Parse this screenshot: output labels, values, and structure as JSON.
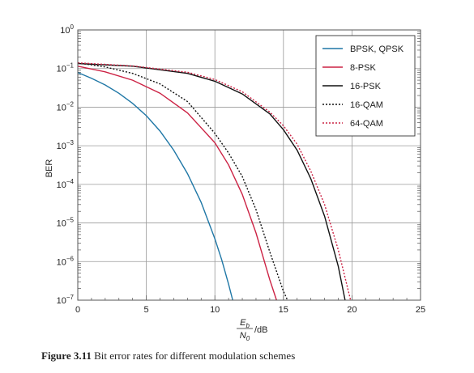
{
  "chart_data": {
    "type": "line",
    "ylabel": "BER",
    "y_scale": "log",
    "xlim": [
      0,
      25
    ],
    "ylim": [
      1e-07,
      1
    ],
    "x_ticks": [
      "0",
      "5",
      "10",
      "15",
      "20",
      "25"
    ],
    "y_ticks": [
      {
        "base": "10",
        "exp": "0"
      },
      {
        "base": "10",
        "exp": "−1"
      },
      {
        "base": "10",
        "exp": "−2"
      },
      {
        "base": "10",
        "exp": "−3"
      },
      {
        "base": "10",
        "exp": "−4"
      },
      {
        "base": "10",
        "exp": "−5"
      },
      {
        "base": "10",
        "exp": "−6"
      },
      {
        "base": "10",
        "exp": "−7"
      }
    ],
    "xlabel_parts": {
      "num_main": "E",
      "num_sub": "b",
      "den_main": "N",
      "den_sub": "0",
      "unit": "/dB"
    },
    "grid": true,
    "legend_position": "top-right",
    "series": [
      {
        "name": "BPSK, QPSK",
        "color": "#1f77a6",
        "dash": "solid",
        "x": [
          0,
          1,
          2,
          3,
          4,
          5,
          6,
          7,
          8,
          9,
          10,
          10.5,
          11,
          11.3
        ],
        "y": [
          0.079,
          0.056,
          0.0375,
          0.0229,
          0.0125,
          0.006,
          0.0024,
          0.00077,
          0.00019,
          3.4e-05,
          3.9e-06,
          1.1e-06,
          2.6e-07,
          1e-07
        ]
      },
      {
        "name": "8-PSK",
        "color": "#cc2244",
        "dash": "solid",
        "x": [
          0,
          2,
          4,
          6,
          8,
          10,
          11,
          12,
          13,
          14,
          14.5
        ],
        "y": [
          0.115,
          0.082,
          0.05,
          0.023,
          0.0071,
          0.0012,
          0.00032,
          5.5e-05,
          5.5e-06,
          3.4e-07,
          1e-07
        ]
      },
      {
        "name": "16-PSK",
        "color": "#111111",
        "dash": "solid",
        "x": [
          0,
          4,
          8,
          10,
          12,
          14,
          15,
          16,
          17,
          18,
          19,
          19.5
        ],
        "y": [
          0.135,
          0.115,
          0.075,
          0.047,
          0.022,
          0.0067,
          0.0026,
          0.00077,
          0.00014,
          1.5e-05,
          7.5e-07,
          1e-07
        ]
      },
      {
        "name": "16-QAM",
        "color": "#111111",
        "dash": "dotted",
        "x": [
          0,
          2,
          4,
          6,
          8,
          10,
          11,
          12,
          13,
          14,
          15,
          15.3
        ],
        "y": [
          0.14,
          0.11,
          0.075,
          0.04,
          0.014,
          0.0021,
          0.00065,
          0.00016,
          2.2e-05,
          1.8e-06,
          1.7e-07,
          1e-07
        ]
      },
      {
        "name": "64-QAM",
        "color": "#cc2244",
        "dash": "dotted",
        "x": [
          0,
          4,
          8,
          10,
          12,
          14,
          15,
          16,
          17,
          18,
          19,
          19.9
        ],
        "y": [
          0.14,
          0.117,
          0.08,
          0.052,
          0.025,
          0.0075,
          0.0033,
          0.0011,
          0.00022,
          3e-05,
          2e-06,
          1e-07
        ]
      }
    ]
  },
  "caption": {
    "figure_label": "Figure 3.11",
    "text": "Bit error rates for different modulation schemes"
  }
}
